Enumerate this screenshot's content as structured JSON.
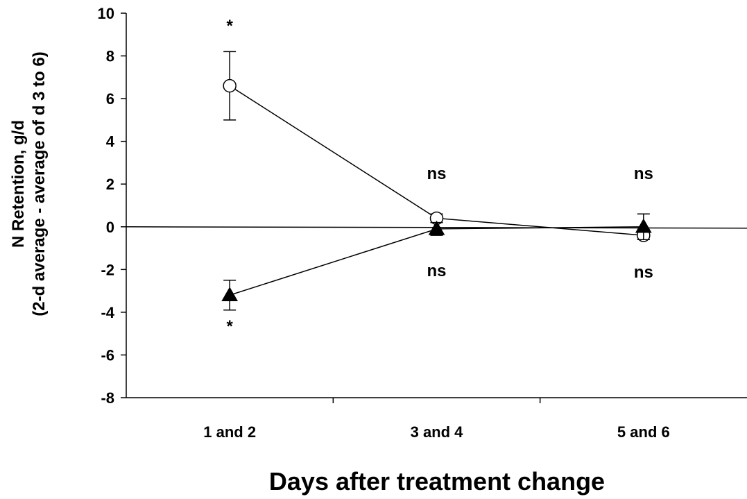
{
  "chart_data": {
    "type": "line",
    "title": "",
    "xlabel": "Days after treatment change",
    "ylabel_line1": "N Retention, g/d",
    "ylabel_line2": "(2-d average - average of d 3 to 6)",
    "categories": [
      "1 and 2",
      "3 and 4",
      "5 and 6"
    ],
    "ylim": [
      -8,
      10
    ],
    "yticks": [
      "-8",
      "-6",
      "-4",
      "-2",
      "0",
      "2",
      "4",
      "6",
      "8",
      "10"
    ],
    "legend": "none",
    "grid": false,
    "series": [
      {
        "marker": "circle-open",
        "values": [
          6.6,
          0.4,
          -0.4
        ],
        "errors": [
          1.6,
          0.2,
          0.2
        ]
      },
      {
        "marker": "triangle-filled",
        "values": [
          -3.2,
          -0.1,
          0.0
        ],
        "errors": [
          0.7,
          0.3,
          0.6
        ]
      }
    ],
    "annotations": {
      "top": [
        "*",
        "ns",
        "ns"
      ],
      "bottom": [
        "*",
        "ns",
        "ns"
      ]
    }
  }
}
